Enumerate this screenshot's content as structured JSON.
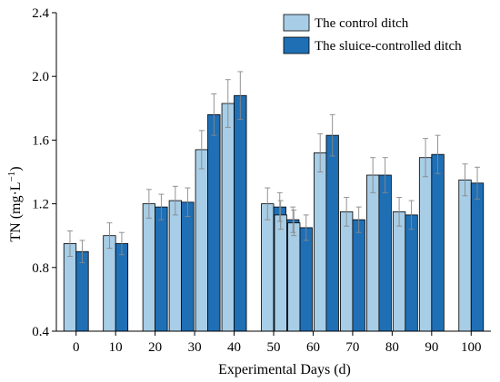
{
  "chart_data": {
    "type": "bar",
    "xlabel": "Experimental Days (d)",
    "ylabel_main": "TN (mg·L",
    "ylabel_sup": "−1",
    "ylabel_close": ")",
    "ylim": [
      0.4,
      2.4
    ],
    "yticks": [
      "0.4",
      "0.8",
      "1.2",
      "1.6",
      "2.0",
      "2.4"
    ],
    "xticks": [
      "0",
      "10",
      "20",
      "30",
      "40",
      "50",
      "60",
      "70",
      "80",
      "90",
      "100"
    ],
    "legend_position": "top-right",
    "groups": [
      0,
      5,
      10,
      15,
      20,
      25,
      30,
      35,
      40,
      45,
      50,
      55,
      60,
      65,
      70,
      75,
      80,
      85,
      90,
      95,
      100
    ],
    "series": [
      {
        "name": "The control ditch",
        "color": "#a8cde6",
        "values": [
          0.95,
          1.0,
          1.2,
          1.22,
          1.54,
          1.83,
          1.2,
          1.13,
          1.08,
          1.52,
          1.15,
          1.38,
          1.15,
          1.49,
          1.35
        ],
        "errors": [
          0.08,
          0.08,
          0.09,
          0.09,
          0.12,
          0.15,
          0.1,
          0.09,
          0.08,
          0.12,
          0.09,
          0.11,
          0.09,
          0.12,
          0.1
        ]
      },
      {
        "name": "The sluice-controlled ditch",
        "color": "#1f6fb5",
        "values": [
          0.9,
          0.95,
          1.18,
          1.21,
          1.76,
          1.88,
          1.18,
          1.1,
          1.05,
          1.63,
          1.1,
          1.38,
          1.13,
          1.51,
          1.33
        ],
        "errors": [
          0.07,
          0.07,
          0.08,
          0.09,
          0.13,
          0.15,
          0.09,
          0.08,
          0.08,
          0.13,
          0.08,
          0.11,
          0.09,
          0.12,
          0.1
        ]
      }
    ],
    "group_days": [
      0,
      10,
      20,
      26.67,
      33.33,
      40,
      50,
      53.33,
      56.67,
      63.33,
      70,
      76.67,
      83.33,
      90,
      100
    ]
  }
}
